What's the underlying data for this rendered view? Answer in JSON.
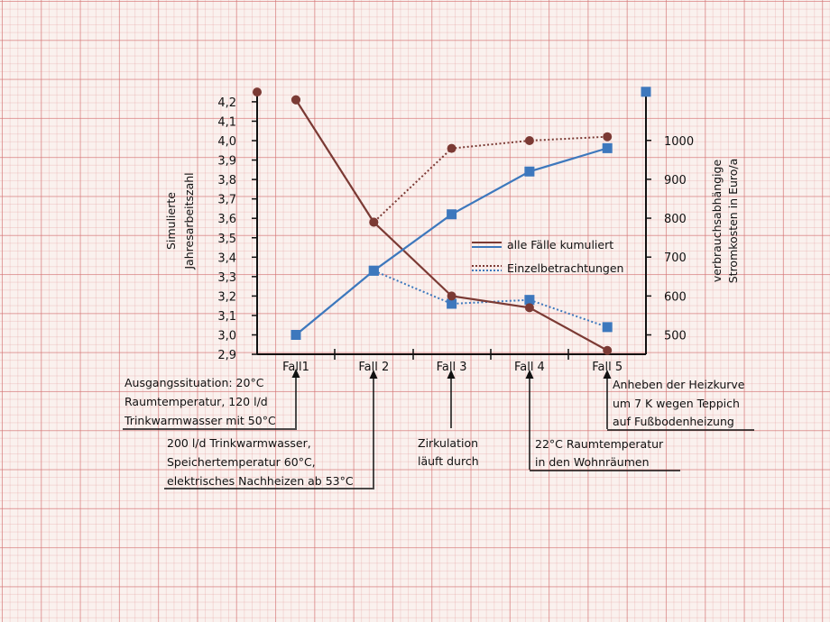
{
  "chart_data": {
    "type": "line",
    "categories": [
      "Fall1",
      "Fall 2",
      "Fall 3",
      "Fall 4",
      "Fall 5"
    ],
    "y_left": {
      "label_lines": [
        "Simulierte",
        "Jahresarbeitszahl"
      ],
      "ylim": [
        2.9,
        4.3
      ],
      "ticks": [
        "4,2",
        "4,1",
        "4,0",
        "3,9",
        "3,8",
        "3,7",
        "3,6",
        "3,5",
        "3,4",
        "3,3",
        "3,2",
        "3,1",
        "3,0",
        "2,9"
      ]
    },
    "y_right": {
      "label_lines": [
        "verbrauchsabhängige",
        "Stromkosten in Euro/a"
      ],
      "ylim": [
        450,
        1080
      ],
      "ticks": [
        "1000",
        "900",
        "800",
        "700",
        "600",
        "500"
      ]
    },
    "series": [
      {
        "name": "alle Fälle kumuliert",
        "axis": "left",
        "style": "solid",
        "marker": "circle",
        "color": "#7b3a34",
        "values": [
          4.21,
          3.58,
          3.2,
          3.14,
          2.92
        ]
      },
      {
        "name": "alle Fälle kumuliert",
        "axis": "right",
        "style": "solid",
        "marker": "square",
        "color": "#3d78bd",
        "values": [
          500,
          665,
          810,
          920,
          980
        ]
      },
      {
        "name": "Einzelbetrachtungen",
        "axis": "left",
        "style": "dotted",
        "marker": "circle",
        "color": "#7b3a34",
        "values": [
          4.21,
          3.58,
          3.96,
          4.0,
          4.02
        ]
      },
      {
        "name": "Einzelbetrachtungen",
        "axis": "right",
        "style": "dotted",
        "marker": "square",
        "color": "#3d78bd",
        "values": [
          500,
          665,
          580,
          590,
          520
        ]
      }
    ],
    "axis_end_markers": {
      "left_value": 4.25,
      "right_value": 1125
    },
    "legend": {
      "position": "right-middle",
      "entries": [
        {
          "label": "alle Fälle kumuliert",
          "style": "solid"
        },
        {
          "label": "Einzelbetrachtungen",
          "style": "dotted"
        }
      ]
    },
    "grid": false
  },
  "annotations": {
    "fall1": [
      "Ausgangssituation: 20°C",
      "Raumtemperatur, 120 l/d",
      "Trinkwarmwasser mit 50°C"
    ],
    "fall2": [
      "200 l/d Trinkwarmwasser,",
      "Speichertemperatur 60°C,",
      "elektrisches Nachheizen ab 53°C"
    ],
    "fall3": [
      "Zirkulation",
      "läuft durch"
    ],
    "fall4": [
      "22°C Raumtemperatur",
      "in den Wohnräumen"
    ],
    "fall5": [
      "Anheben der Heizkurve",
      "um 7 K wegen Teppich",
      "auf Fußbodenheizung"
    ]
  },
  "colors": {
    "brown": "#7b3a34",
    "blue": "#3d78bd",
    "axis": "#111111"
  }
}
